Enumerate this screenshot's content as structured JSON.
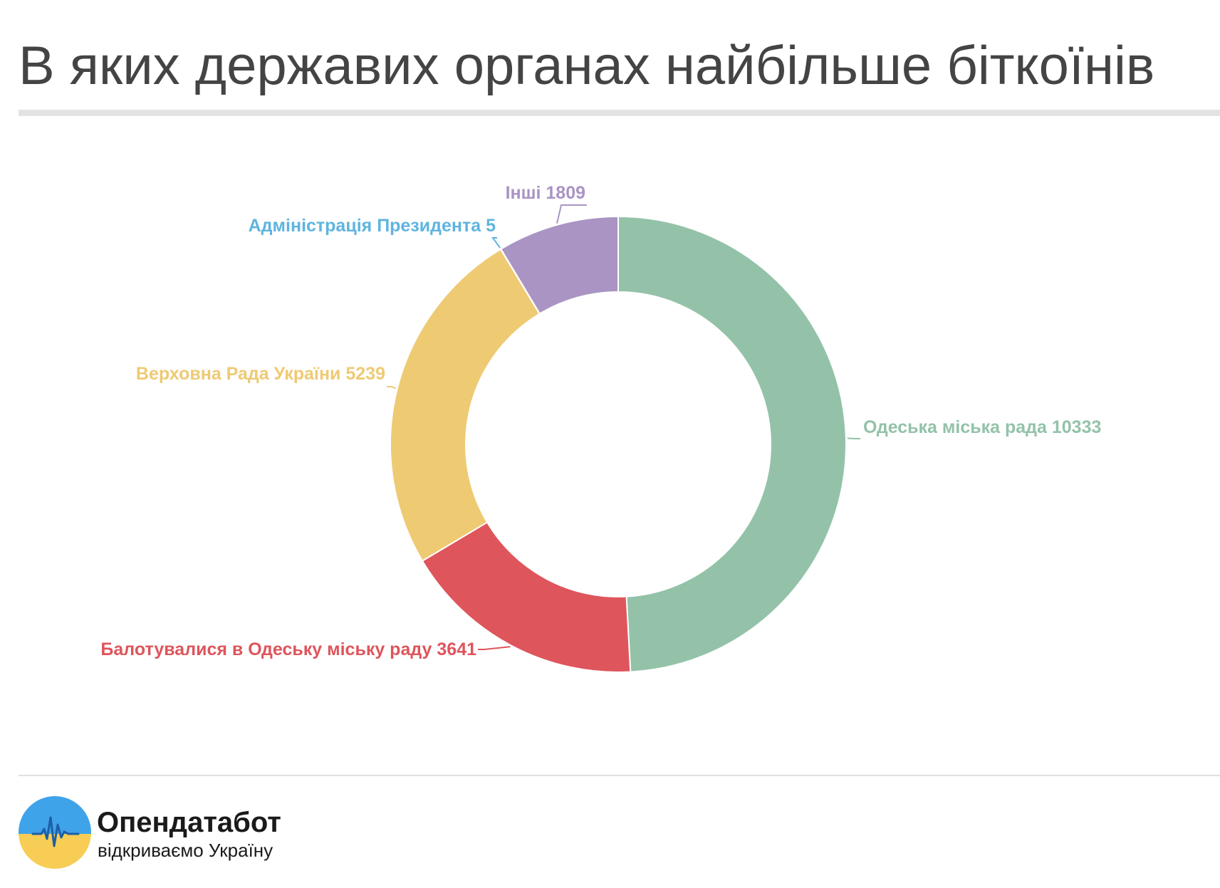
{
  "header": {
    "title": "В яких державих органах найбільше біткоїнів"
  },
  "chart_data": {
    "type": "pie",
    "variant": "donut",
    "title": "В яких державих органах найбільше біткоїнів",
    "series": [
      {
        "name": "Одеська міська рада",
        "value": 10333,
        "color": "#93c2a8",
        "label": "Одеська міська рада 10333"
      },
      {
        "name": "Балотувалися в Одеську міську раду",
        "value": 3641,
        "color": "#de555c",
        "label": "Балотувалися в Одеську міську раду 3641"
      },
      {
        "name": "Верховна Рада України",
        "value": 5239,
        "color": "#eeca73",
        "label": "Верховна Рада України 5239"
      },
      {
        "name": "Адміністрація Президента",
        "value": 5,
        "color": "#5fb4df",
        "label": "Адміністрація Президента 5"
      },
      {
        "name": "Інші",
        "value": 1809,
        "color": "#a994c3",
        "label": "Інші 1809"
      }
    ]
  },
  "footer": {
    "brand_name": "Опендатабот",
    "tagline": "відкриваємо Україну",
    "logo_icon": "heartbeat-logo-icon",
    "logo_colors": {
      "top": "#3fa3ea",
      "bottom": "#f7cd55",
      "pulse": "#1d5fa6"
    }
  }
}
